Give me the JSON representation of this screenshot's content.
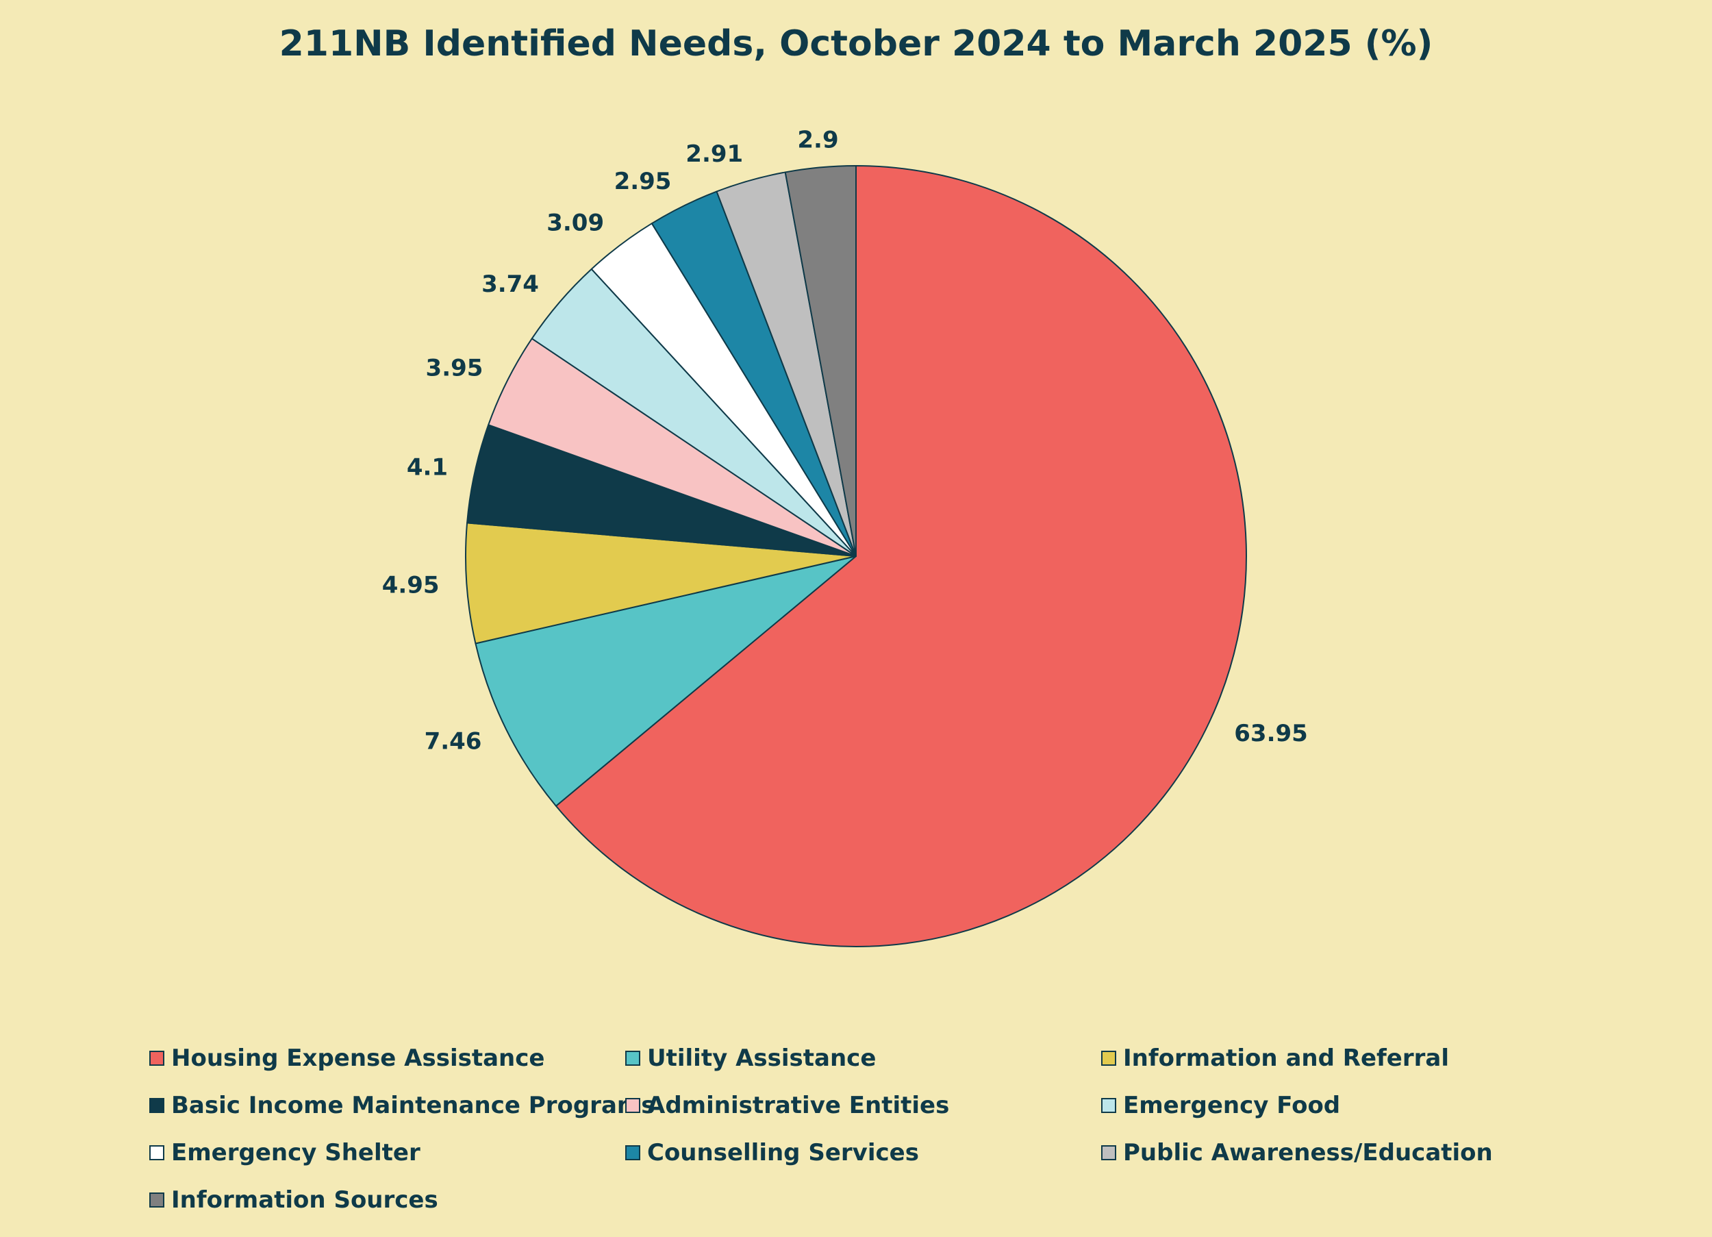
{
  "chart_data": {
    "type": "pie",
    "title": "211NB Identified Needs, October 2024 to March 2025 (%)",
    "slices": [
      {
        "name": "Housing Expense Assistance",
        "value": 63.95,
        "label": "63.95",
        "color": "#F0635E"
      },
      {
        "name": "Utility Assistance",
        "value": 7.46,
        "label": "7.46",
        "color": "#57C4C6"
      },
      {
        "name": "Information and Referral",
        "value": 4.95,
        "label": "4.95",
        "color": "#E2CB4F"
      },
      {
        "name": "Basic Income Maintenance Programs",
        "value": 4.1,
        "label": "4.1",
        "color": "#0F3A49"
      },
      {
        "name": "Administrative Entities",
        "value": 3.95,
        "label": "3.95",
        "color": "#F8C3C3"
      },
      {
        "name": "Emergency Food",
        "value": 3.74,
        "label": "3.74",
        "color": "#BDE6EA"
      },
      {
        "name": "Emergency Shelter",
        "value": 3.09,
        "label": "3.09",
        "color": "#FFFFFF"
      },
      {
        "name": "Counselling Services",
        "value": 2.95,
        "label": "2.95",
        "color": "#1D86A6"
      },
      {
        "name": "Public Awareness/Education",
        "value": 2.91,
        "label": "2.91",
        "color": "#BFBFBF"
      },
      {
        "name": "Information Sources",
        "value": 2.9,
        "label": "2.9",
        "color": "#808080"
      }
    ],
    "start_angle": "12 o'clock",
    "direction": "clockwise",
    "legend_position": "bottom",
    "legend_columns": 3
  },
  "colors": {
    "background": "#F4EAB6",
    "text": "#0F3A49",
    "outline": "#0F3A49"
  }
}
